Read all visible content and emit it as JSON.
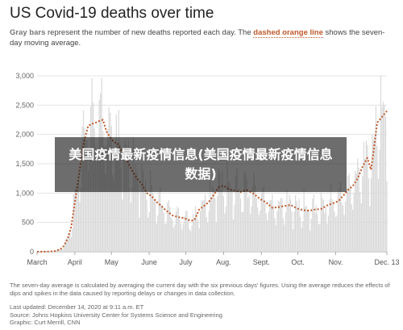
{
  "header": {
    "title": "US Covid-19 deaths over time",
    "subtitle_part1": "Gray bars",
    "subtitle_part2": " represent the number of new deaths reported each day. The ",
    "subtitle_part3": "dashed orange line",
    "subtitle_part4": " shows the seven-day moving average."
  },
  "overlay": {
    "text": "美国疫情最新疫情信息(美国疫情最新疫情信息数据)"
  },
  "footer": {
    "note": "The seven-day average is calculated by averaging the current day with the six previous days' figures. Using the average reduces the effects of dips and spikes in the data caused by reporting delays or changes in data collection.",
    "updated": "Last updated: December 14, 2020 at 9:11 a.m. ET",
    "source": "Source: Johns Hopkins University Center for Systems Science and Engineering",
    "graphic": "Graphic: Curt Merrill, CNN"
  },
  "colors": {
    "bars": "#d9d9d9",
    "line": "#c0592a",
    "grid": "#dddddd",
    "text": "#222222"
  },
  "chart_data": {
    "type": "bar",
    "series": [
      {
        "kind": "daily new deaths (gray bars)"
      },
      {
        "kind": "seven-day moving average (dashed orange line)"
      }
    ],
    "ylim": [
      0,
      3000
    ],
    "yticks": [
      0,
      500,
      1000,
      1500,
      2000,
      2500,
      3000
    ],
    "ytick_labels": [
      "0",
      "500",
      "1,000",
      "1,500",
      "2,000",
      "2,500",
      "3,000"
    ],
    "xticks": [
      {
        "date": "2020-03-01",
        "label": "March"
      },
      {
        "date": "2020-04-01",
        "label": "April"
      },
      {
        "date": "2020-05-01",
        "label": "May"
      },
      {
        "date": "2020-06-01",
        "label": "June"
      },
      {
        "date": "2020-07-01",
        "label": "July"
      },
      {
        "date": "2020-08-01",
        "label": "Aug."
      },
      {
        "date": "2020-09-01",
        "label": "Sept."
      },
      {
        "date": "2020-10-01",
        "label": "Oct."
      },
      {
        "date": "2020-11-01",
        "label": "Nov."
      },
      {
        "date": "2020-12-13",
        "label": "Dec. 13"
      }
    ],
    "avg_points": [
      [
        "2020-03-01",
        0
      ],
      [
        "2020-03-10",
        3
      ],
      [
        "2020-03-15",
        8
      ],
      [
        "2020-03-20",
        40
      ],
      [
        "2020-03-23",
        100
      ],
      [
        "2020-03-26",
        220
      ],
      [
        "2020-03-29",
        420
      ],
      [
        "2020-04-01",
        850
      ],
      [
        "2020-04-04",
        1250
      ],
      [
        "2020-04-07",
        1700
      ],
      [
        "2020-04-10",
        2000
      ],
      [
        "2020-04-12",
        2150
      ],
      [
        "2020-04-15",
        2180
      ],
      [
        "2020-04-18",
        2200
      ],
      [
        "2020-04-21",
        2230
      ],
      [
        "2020-04-24",
        2250
      ],
      [
        "2020-04-27",
        2050
      ],
      [
        "2020-04-30",
        1950
      ],
      [
        "2020-05-03",
        1870
      ],
      [
        "2020-05-06",
        1850
      ],
      [
        "2020-05-10",
        1700
      ],
      [
        "2020-05-14",
        1550
      ],
      [
        "2020-05-18",
        1380
      ],
      [
        "2020-05-22",
        1250
      ],
      [
        "2020-05-26",
        1150
      ],
      [
        "2020-05-30",
        1000
      ],
      [
        "2020-06-03",
        950
      ],
      [
        "2020-06-07",
        850
      ],
      [
        "2020-06-11",
        780
      ],
      [
        "2020-06-15",
        700
      ],
      [
        "2020-06-20",
        620
      ],
      [
        "2020-06-25",
        590
      ],
      [
        "2020-06-30",
        570
      ],
      [
        "2020-07-05",
        530
      ],
      [
        "2020-07-08",
        540
      ],
      [
        "2020-07-12",
        720
      ],
      [
        "2020-07-16",
        780
      ],
      [
        "2020-07-20",
        850
      ],
      [
        "2020-07-24",
        970
      ],
      [
        "2020-07-28",
        1100
      ],
      [
        "2020-08-01",
        1130
      ],
      [
        "2020-08-05",
        1070
      ],
      [
        "2020-08-10",
        1040
      ],
      [
        "2020-08-15",
        1020
      ],
      [
        "2020-08-20",
        1050
      ],
      [
        "2020-08-25",
        1000
      ],
      [
        "2020-08-31",
        900
      ],
      [
        "2020-09-05",
        840
      ],
      [
        "2020-09-10",
        750
      ],
      [
        "2020-09-15",
        760
      ],
      [
        "2020-09-20",
        780
      ],
      [
        "2020-09-25",
        800
      ],
      [
        "2020-09-30",
        740
      ],
      [
        "2020-10-05",
        710
      ],
      [
        "2020-10-10",
        700
      ],
      [
        "2020-10-15",
        720
      ],
      [
        "2020-10-20",
        730
      ],
      [
        "2020-10-25",
        790
      ],
      [
        "2020-10-30",
        830
      ],
      [
        "2020-11-03",
        860
      ],
      [
        "2020-11-07",
        950
      ],
      [
        "2020-11-11",
        1050
      ],
      [
        "2020-11-15",
        1120
      ],
      [
        "2020-11-19",
        1250
      ],
      [
        "2020-11-23",
        1450
      ],
      [
        "2020-11-27",
        1600
      ],
      [
        "2020-11-30",
        1400
      ],
      [
        "2020-12-02",
        1700
      ],
      [
        "2020-12-05",
        2200
      ],
      [
        "2020-12-09",
        2300
      ],
      [
        "2020-12-13",
        2400
      ]
    ]
  }
}
